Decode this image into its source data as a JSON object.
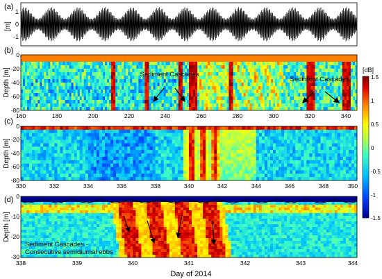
{
  "figure": {
    "xlabel": "Day of 2014",
    "colorbar_unit": "[dB]",
    "colorbar_ticks": [
      "1.5",
      "1",
      "0.5",
      "0",
      "-0.5",
      "-1",
      "-1.5"
    ],
    "colors": [
      "#00008f",
      "#0060ff",
      "#00e0ff",
      "#70ff8a",
      "#ffff00",
      "#ff8c00",
      "#e80000",
      "#800000"
    ]
  },
  "chart_data": [
    {
      "panel": "(a)",
      "type": "line",
      "ylabel": "[m]",
      "xlim": [
        160,
        345
      ],
      "ylim": [
        -1.5,
        1.5
      ],
      "yticks": [
        "1",
        "0",
        "-1"
      ],
      "series": [
        {
          "description": "tidal elevation",
          "spring_neap_amplitude_m": [
            0.4,
            1.2
          ],
          "semidiurnal_period_days": 0.52
        }
      ]
    },
    {
      "panel": "(b)",
      "type": "heatmap",
      "ylabel": "Depth [m]",
      "xlim": [
        160,
        345
      ],
      "ylim": [
        -80,
        0
      ],
      "xticks": [
        "160",
        "180",
        "200",
        "220",
        "240",
        "260",
        "280",
        "300",
        "320",
        "340"
      ],
      "yticks": [
        "0",
        "-20",
        "-40",
        "-60",
        "-80"
      ],
      "clim": [
        -1.5,
        1.5
      ],
      "high_backscatter_columns_day": [
        211,
        229,
        248,
        254,
        256,
        276,
        318,
        321,
        338,
        340
      ],
      "annotations": [
        {
          "text": "Sediment Cascades",
          "x": 235,
          "y": -35,
          "arrows_to_day": [
            229,
            256
          ]
        },
        {
          "text": "Sediment Cascades",
          "x": 328,
          "y": -35,
          "arrows_to_day": [
            318,
            340
          ]
        }
      ]
    },
    {
      "panel": "(c)",
      "type": "heatmap",
      "ylabel": "Depth [m]",
      "xlim": [
        330,
        350
      ],
      "ylim": [
        -80,
        0
      ],
      "xticks": [
        "330",
        "332",
        "334",
        "336",
        "338",
        "340",
        "342",
        "344",
        "346",
        "348",
        "350"
      ],
      "yticks": [
        "0",
        "-20",
        "-40",
        "-60",
        "-80"
      ],
      "clim": [
        -1.5,
        1.5
      ],
      "event_days": [
        339.6,
        342.0
      ]
    },
    {
      "panel": "(d)",
      "type": "heatmap",
      "ylabel": "Depth [m]",
      "xlim": [
        338,
        344
      ],
      "ylim": [
        -30,
        0
      ],
      "xticks": [
        "338",
        "339",
        "340",
        "341",
        "342",
        "343",
        "344"
      ],
      "yticks": [
        "0",
        "-10",
        "-20",
        "-30"
      ],
      "clim": [
        -1.5,
        1.5
      ],
      "ebb_streak_days": [
        339.85,
        340.35,
        340.85,
        341.35
      ],
      "annotations": [
        {
          "text": "Sediment Cascades -"
        },
        {
          "text": "Consecutive semidiurnal ebbs"
        }
      ]
    }
  ]
}
